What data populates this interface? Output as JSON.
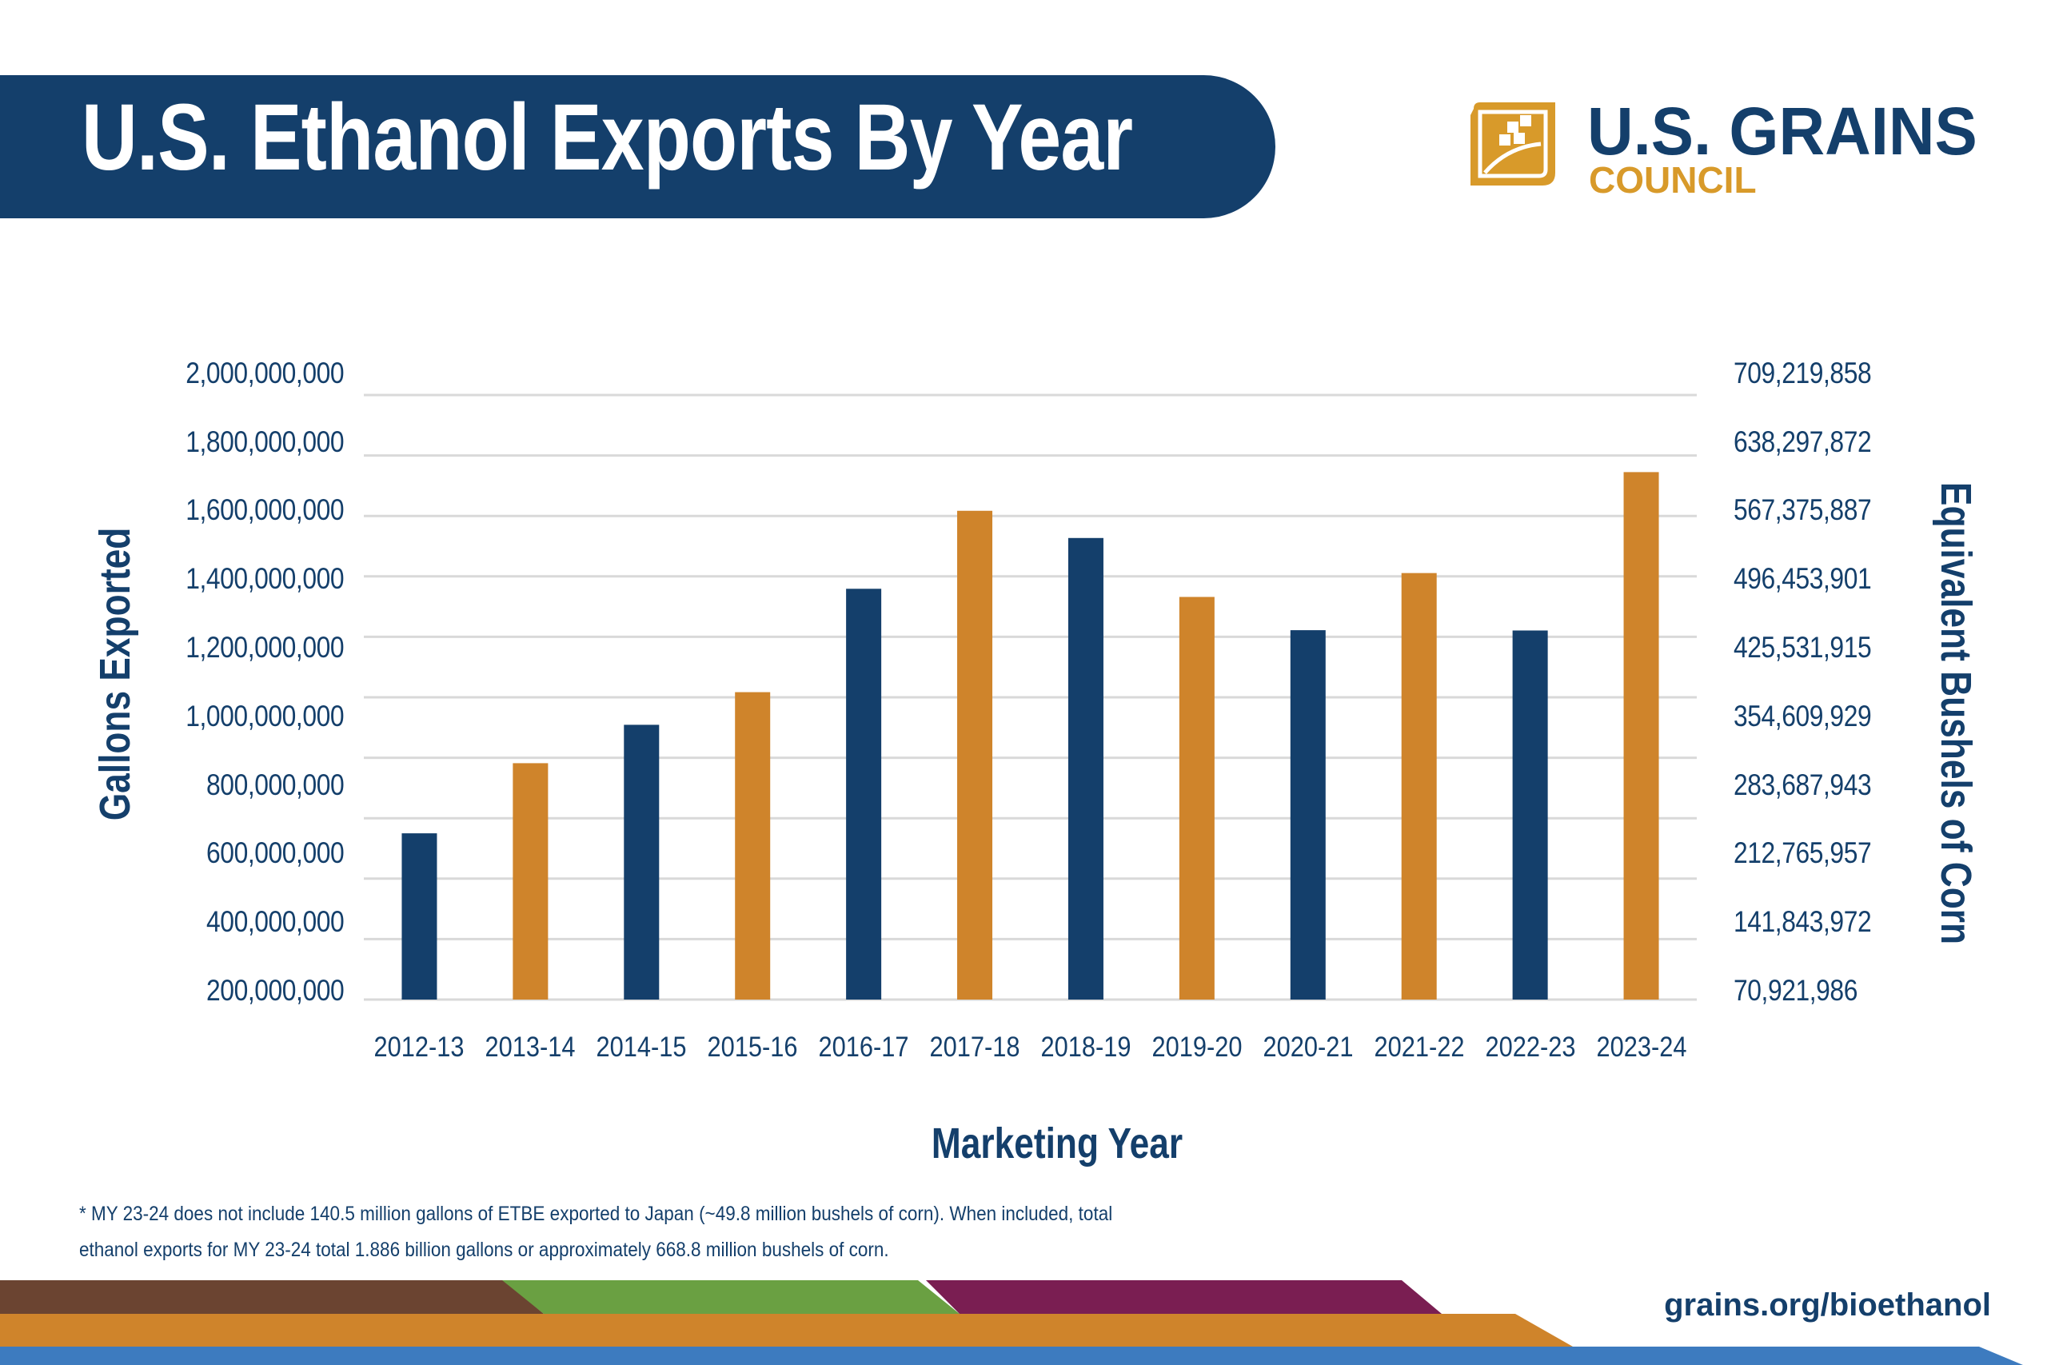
{
  "header": {
    "title": "U.S. Ethanol Exports By Year"
  },
  "logo": {
    "line1": "U.S. GRAINS",
    "line2": "COUNCIL",
    "icon": "grains-council-leaf-icon"
  },
  "colors": {
    "navy": "#143f6b",
    "orange": "#cf842b",
    "brown": "#6b4431",
    "green": "#6aa042",
    "purple": "#7a1e52",
    "blue": "#3d7bbf"
  },
  "chart_data": {
    "type": "bar",
    "title": "U.S. Ethanol Exports By Year",
    "xlabel": "Marketing Year",
    "ylabel": "Gallons Exported",
    "y2label": "Equivalent Bushels of Corn",
    "categories": [
      "2012-13",
      "2013-14",
      "2014-15",
      "2015-16",
      "2016-17",
      "2017-18",
      "2018-19",
      "2019-20",
      "2020-21",
      "2021-22",
      "2022-23",
      "2023-24"
    ],
    "values": [
      550000000,
      782000000,
      909000000,
      1017000000,
      1359000000,
      1617000000,
      1527000000,
      1332000000,
      1222000000,
      1411000000,
      1221000000,
      1745000000
    ],
    "bar_colors": [
      "#143f6b",
      "#cf842b",
      "#143f6b",
      "#cf842b",
      "#143f6b",
      "#cf842b",
      "#143f6b",
      "#cf842b",
      "#143f6b",
      "#cf842b",
      "#143f6b",
      "#cf842b"
    ],
    "ylim": [
      0,
      2000000000
    ],
    "yticks_left": [
      "200,000,000",
      "400,000,000",
      "600,000,000",
      "800,000,000",
      "1,000,000,000",
      "1,200,000,000",
      "1,400,000,000",
      "1,600,000,000",
      "1,800,000,000",
      "2,000,000,000"
    ],
    "yticks_right": [
      "70,921,986",
      "141,843,972",
      "212,765,957",
      "283,687,943",
      "354,609,929",
      "425,531,915",
      "496,453,901",
      "567,375,887",
      "638,297,872",
      "709,219,858"
    ],
    "grid": true,
    "legend": "none"
  },
  "footnote": {
    "line1": "* MY 23-24 does not include 140.5 million gallons of ETBE exported to Japan  (~49.8 million bushels of corn). When included, total",
    "line2": "ethanol exports for MY 23-24 total 1.886 billion gallons or approximately 668.8 million bushels of corn."
  },
  "footer": {
    "url": "grains.org/bioethanol"
  }
}
